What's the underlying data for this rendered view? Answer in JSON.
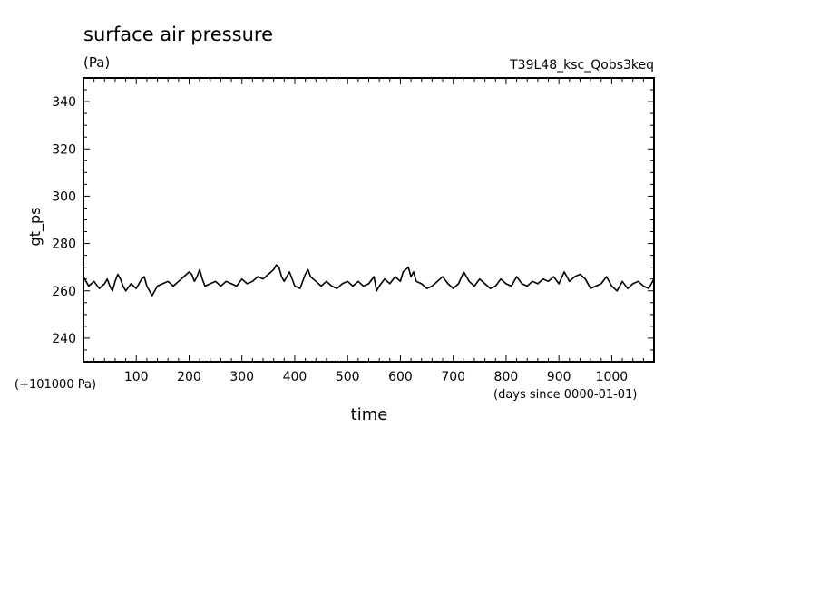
{
  "chart_data": {
    "type": "line",
    "title": "surface air pressure",
    "units": "(Pa)",
    "run_label": "T39L48_ksc_Qobs3keq",
    "ylabel": "gt_ps",
    "xlabel": "time",
    "x_units": "(days since 0000-01-01)",
    "y_offset_label": "(+101000 Pa)",
    "xlim": [
      0,
      1080
    ],
    "ylim": [
      230,
      350
    ],
    "x_ticks": [
      100,
      200,
      300,
      400,
      500,
      600,
      700,
      800,
      900,
      1000
    ],
    "y_ticks": [
      240,
      260,
      280,
      300,
      320,
      340
    ],
    "grid": false,
    "series": [
      {
        "name": "",
        "color": "#000000",
        "x": [
          0,
          10,
          20,
          30,
          40,
          45,
          50,
          55,
          60,
          65,
          70,
          75,
          80,
          90,
          95,
          100,
          105,
          110,
          115,
          120,
          125,
          130,
          140,
          150,
          160,
          170,
          180,
          190,
          200,
          205,
          210,
          215,
          220,
          225,
          230,
          240,
          250,
          260,
          270,
          280,
          290,
          300,
          310,
          320,
          330,
          340,
          350,
          360,
          365,
          370,
          375,
          380,
          390,
          400,
          410,
          420,
          425,
          430,
          440,
          450,
          460,
          470,
          480,
          490,
          500,
          510,
          520,
          530,
          540,
          550,
          555,
          560,
          570,
          580,
          590,
          600,
          605,
          610,
          615,
          620,
          625,
          630,
          640,
          650,
          660,
          670,
          680,
          690,
          700,
          710,
          720,
          730,
          740,
          750,
          760,
          770,
          780,
          790,
          800,
          810,
          820,
          830,
          840,
          850,
          860,
          870,
          880,
          890,
          900,
          910,
          920,
          930,
          940,
          950,
          960,
          970,
          980,
          990,
          1000,
          1010,
          1020,
          1030,
          1040,
          1050,
          1060,
          1070,
          1080
        ],
        "y": [
          266,
          262,
          264,
          261,
          263,
          265,
          262,
          260,
          264,
          267,
          265,
          262,
          260,
          263,
          262,
          261,
          263,
          265,
          266,
          262,
          260,
          258,
          262,
          263,
          264,
          262,
          264,
          266,
          268,
          267,
          264,
          266,
          269,
          265,
          262,
          263,
          264,
          262,
          264,
          263,
          262,
          265,
          263,
          264,
          266,
          265,
          267,
          269,
          271,
          270,
          266,
          264,
          268,
          262,
          261,
          267,
          269,
          266,
          264,
          262,
          264,
          262,
          261,
          263,
          264,
          262,
          264,
          262,
          263,
          266,
          260,
          262,
          265,
          263,
          266,
          264,
          268,
          269,
          270,
          266,
          268,
          264,
          263,
          261,
          262,
          264,
          266,
          263,
          261,
          263,
          268,
          264,
          262,
          265,
          263,
          261,
          262,
          265,
          263,
          262,
          266,
          263,
          262,
          264,
          263,
          265,
          264,
          266,
          263,
          268,
          264,
          266,
          267,
          265,
          261,
          262,
          263,
          266,
          262,
          260,
          264,
          261,
          263,
          264,
          262,
          261,
          265
        ]
      }
    ]
  }
}
